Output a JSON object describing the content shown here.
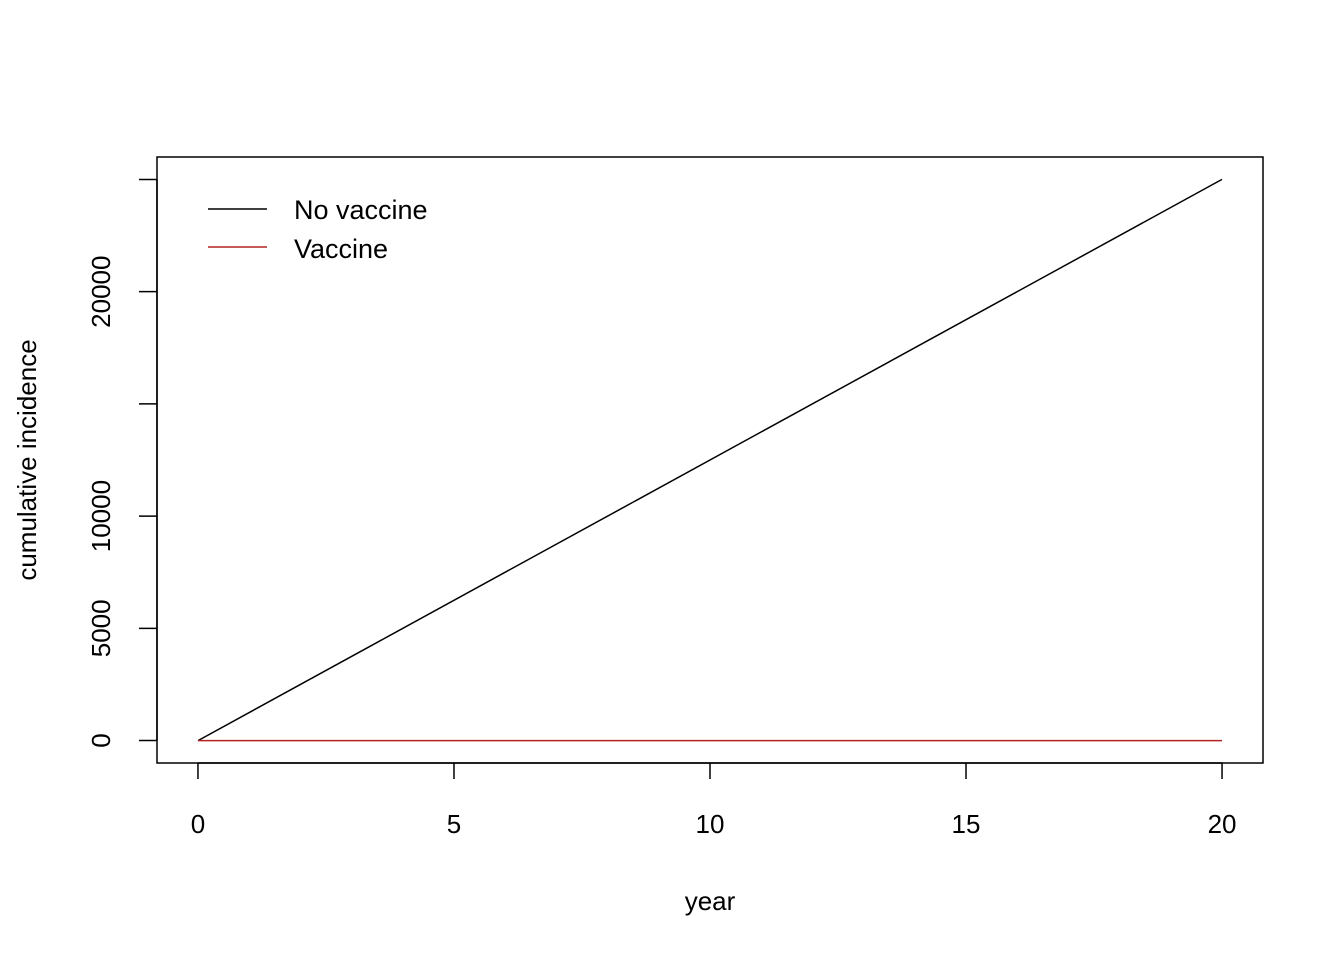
{
  "chart_data": {
    "type": "line",
    "title": "",
    "xlabel": "year",
    "ylabel": "cumulative incidence",
    "xlim": [
      -0.8,
      20.8
    ],
    "ylim": [
      -1000,
      26000
    ],
    "x_ticks": [
      0,
      5,
      10,
      15,
      20
    ],
    "x_tick_labels": [
      "0",
      "5",
      "10",
      "15",
      "20"
    ],
    "y_ticks": [
      0,
      5000,
      10000,
      15000,
      20000,
      25000
    ],
    "y_tick_labels": [
      "0",
      "5000",
      "10000",
      "",
      "20000",
      ""
    ],
    "grid": false,
    "legend_position": "top-left",
    "series": [
      {
        "name": "No vaccine",
        "color": "#000000",
        "x": [
          0,
          20
        ],
        "y": [
          0,
          25000
        ]
      },
      {
        "name": "Vaccine",
        "color": "#b22222",
        "x": [
          0,
          20
        ],
        "y": [
          0,
          0
        ]
      }
    ]
  }
}
